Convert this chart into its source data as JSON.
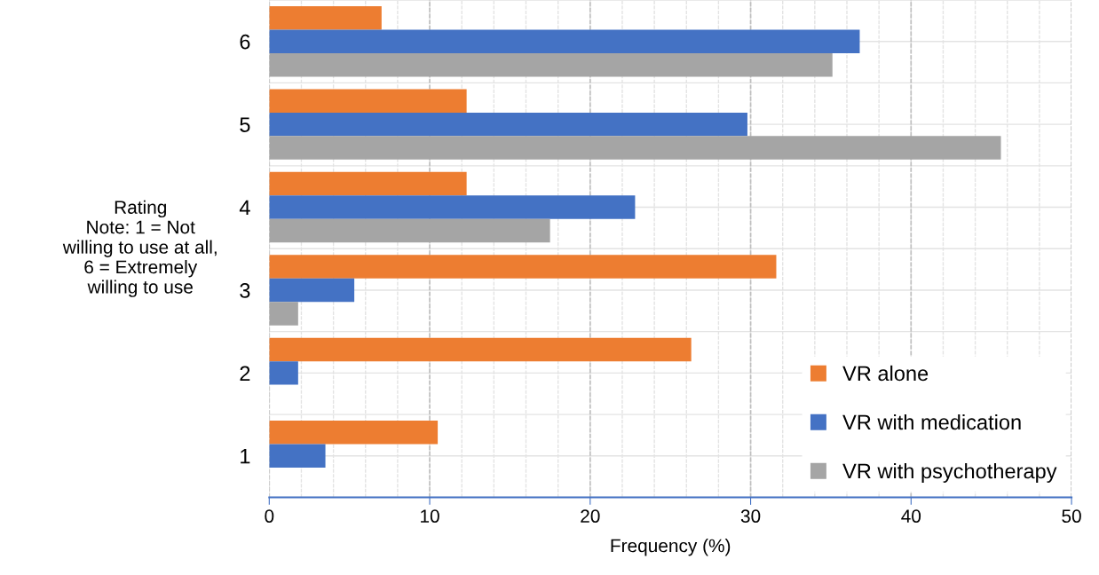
{
  "chart_data": {
    "type": "bar",
    "orientation": "horizontal",
    "xlabel": "Frequency (%)",
    "ylabel": "Rating\nNote: 1 = Not\nwilling to use at all,\n6 = Extremely\nwilling to use",
    "categories": [
      "6",
      "5",
      "4",
      "3",
      "2",
      "1"
    ],
    "series": [
      {
        "name": "VR alone",
        "color": "#ed7d31",
        "values": [
          7.0,
          12.3,
          12.3,
          31.6,
          26.3,
          10.5
        ]
      },
      {
        "name": "VR with medication",
        "color": "#4472c4",
        "values": [
          36.8,
          29.8,
          22.8,
          5.3,
          1.8,
          3.5
        ]
      },
      {
        "name": "VR with psychotherapy",
        "color": "#a5a5a5",
        "values": [
          35.1,
          45.6,
          17.5,
          1.8,
          null,
          null
        ]
      }
    ],
    "xlim": [
      0,
      50
    ],
    "xticks": [
      0,
      10,
      20,
      30,
      40,
      50
    ],
    "grid": true,
    "legend": "bottom right"
  }
}
